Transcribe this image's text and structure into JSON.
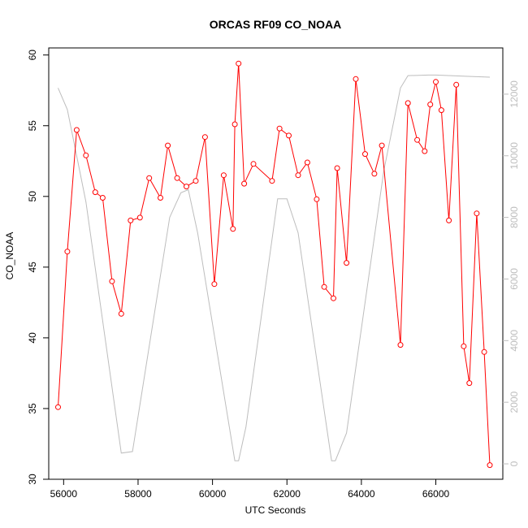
{
  "chart_data": {
    "type": "line",
    "title": "ORCAS RF09 CO_NOAA",
    "xlabel": "UTC Seconds",
    "ylabel": "CO_NOAA",
    "xlim": [
      55600,
      67800
    ],
    "ylim": [
      30,
      60.5
    ],
    "y2lim": [
      -500,
      13500
    ],
    "x_ticks": [
      56000,
      58000,
      60000,
      62000,
      64000,
      66000
    ],
    "y_ticks": [
      30,
      35,
      40,
      45,
      50,
      55,
      60
    ],
    "y2_ticks": [
      0,
      2000,
      4000,
      6000,
      8000,
      10000,
      12000
    ],
    "grid": false,
    "colors": {
      "co": "#ff0000",
      "altitude": "#bdbdbd"
    },
    "series": [
      {
        "axis": "left",
        "style": "line+points",
        "x": [
          55850,
          56100,
          56350,
          56600,
          56850,
          57050,
          57300,
          57550,
          57800,
          58050,
          58300,
          58600,
          58800,
          59050,
          59300,
          59550,
          59800,
          60050,
          60300,
          60550,
          60600,
          60700,
          60850,
          61100,
          61600,
          61800,
          62050,
          62300,
          62550,
          62800,
          63000,
          63250,
          63350,
          63600,
          63850,
          64100,
          64350,
          64550,
          65050,
          65250,
          65500,
          65700,
          65850,
          66000,
          66150,
          66350,
          66550,
          66750,
          66900,
          67100,
          67300,
          67450
        ],
        "y": [
          35.1,
          46.1,
          54.7,
          52.9,
          50.3,
          49.9,
          44.0,
          41.7,
          48.3,
          48.5,
          51.3,
          49.9,
          53.6,
          51.3,
          50.7,
          51.1,
          54.2,
          43.8,
          51.5,
          47.7,
          55.1,
          59.4,
          50.9,
          52.3,
          51.1,
          54.8,
          54.3,
          51.5,
          52.4,
          49.8,
          43.6,
          42.8,
          52.0,
          45.3,
          58.3,
          53.0,
          51.6,
          53.6,
          39.5,
          56.6,
          54.0,
          53.2,
          56.5,
          58.1,
          56.1,
          48.3,
          57.9,
          39.4,
          36.8,
          48.8,
          39.0,
          31.0
        ]
      },
      {
        "axis": "right",
        "style": "line",
        "x": [
          55850,
          56100,
          56350,
          56600,
          57550,
          57850,
          58850,
          59150,
          59350,
          59600,
          60600,
          60700,
          60900,
          61750,
          62000,
          62300,
          63200,
          63300,
          63600,
          64600,
          65050,
          65250,
          65800,
          66000,
          66800,
          67450
        ],
        "y": [
          12200,
          11500,
          10000,
          8500,
          350,
          400,
          8000,
          8800,
          8900,
          7500,
          100,
          100,
          1200,
          8600,
          8600,
          7500,
          100,
          100,
          1000,
          9500,
          12200,
          12600,
          12620,
          12620,
          12580,
          12550
        ]
      }
    ]
  }
}
